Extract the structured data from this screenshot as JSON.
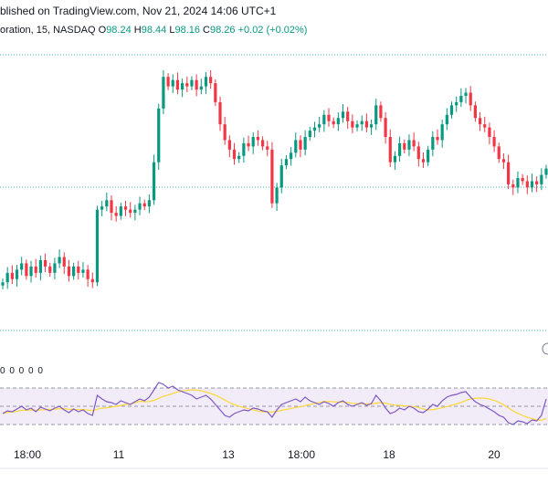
{
  "header": {
    "published": "blished on TradingView.com, Nov 21, 2024 14:06 UTC+1",
    "symbol": "oration, 15, NASDAQ",
    "open_label": "O",
    "open": "98.24",
    "high_label": "H",
    "high": "98.44",
    "low_label": "L",
    "low": "98.16",
    "close_label": "C",
    "close": "98.26",
    "change": "+0.02 (+0.02%)"
  },
  "indicator_values": "0 0 0 0 0",
  "colors": {
    "up": "#089981",
    "down": "#f23645",
    "rsi_line": "#7e57c2",
    "rsi_ma": "#fdd835",
    "rsi_band": "#ede7f6",
    "dots": "#089981"
  },
  "chart_data": {
    "type": "candlestick",
    "x_tick_labels": [
      "18:00",
      "11",
      "13",
      "18:00",
      "18",
      "20"
    ],
    "price_close_series": [
      3.0,
      3.3,
      3.1,
      3.4,
      3.6,
      3.2,
      3.5,
      3.3,
      3.7,
      3.5,
      3.3,
      3.6,
      3.8,
      3.5,
      3.2,
      3.5,
      3.3,
      3.4,
      3.1,
      3.0,
      5.3,
      5.4,
      5.6,
      5.2,
      5.1,
      5.4,
      5.3,
      5.2,
      5.3,
      5.5,
      5.4,
      5.6,
      6.8,
      8.5,
      9.5,
      9.2,
      9.4,
      9.1,
      9.3,
      9.2,
      9.4,
      9.1,
      9.2,
      9.5,
      9.3,
      8.7,
      8.0,
      7.5,
      7.2,
      6.9,
      7.0,
      7.4,
      7.3,
      7.6,
      7.5,
      7.3,
      7.2,
      5.5,
      6.0,
      6.7,
      6.9,
      7.1,
      7.5,
      7.2,
      7.6,
      7.8,
      7.9,
      8.0,
      8.3,
      8.1,
      8.0,
      8.2,
      8.4,
      8.1,
      7.9,
      8.0,
      8.1,
      7.9,
      8.0,
      8.6,
      8.2,
      7.6,
      6.8,
      7.0,
      7.4,
      7.2,
      7.5,
      7.3,
      6.9,
      6.8,
      7.2,
      7.6,
      7.5,
      8.0,
      8.3,
      8.6,
      8.7,
      8.9,
      9.0,
      8.6,
      8.2,
      8.0,
      7.9,
      7.6,
      7.3,
      6.9,
      6.8,
      6.1,
      6.0,
      6.3,
      6.2,
      6.0,
      6.2,
      6.1,
      6.4,
      6.6
    ],
    "rsi_series": [
      42,
      45,
      44,
      47,
      50,
      46,
      48,
      44,
      49,
      47,
      45,
      48,
      50,
      46,
      43,
      47,
      44,
      46,
      42,
      40,
      62,
      58,
      55,
      54,
      52,
      56,
      54,
      52,
      55,
      58,
      56,
      60,
      68,
      76,
      74,
      70,
      72,
      68,
      66,
      64,
      62,
      58,
      60,
      62,
      58,
      52,
      46,
      40,
      38,
      42,
      44,
      46,
      45,
      48,
      47,
      45,
      44,
      38,
      46,
      52,
      54,
      56,
      58,
      55,
      60,
      56,
      54,
      52,
      55,
      53,
      50,
      54,
      56,
      52,
      50,
      52,
      54,
      51,
      53,
      62,
      56,
      48,
      42,
      44,
      48,
      46,
      50,
      48,
      44,
      43,
      47,
      52,
      50,
      56,
      60,
      62,
      63,
      65,
      66,
      60,
      55,
      52,
      50,
      47,
      44,
      40,
      38,
      32,
      30,
      34,
      33,
      31,
      35,
      34,
      40,
      58
    ],
    "rsi_levels": [
      70,
      50,
      30
    ],
    "grid": true
  }
}
